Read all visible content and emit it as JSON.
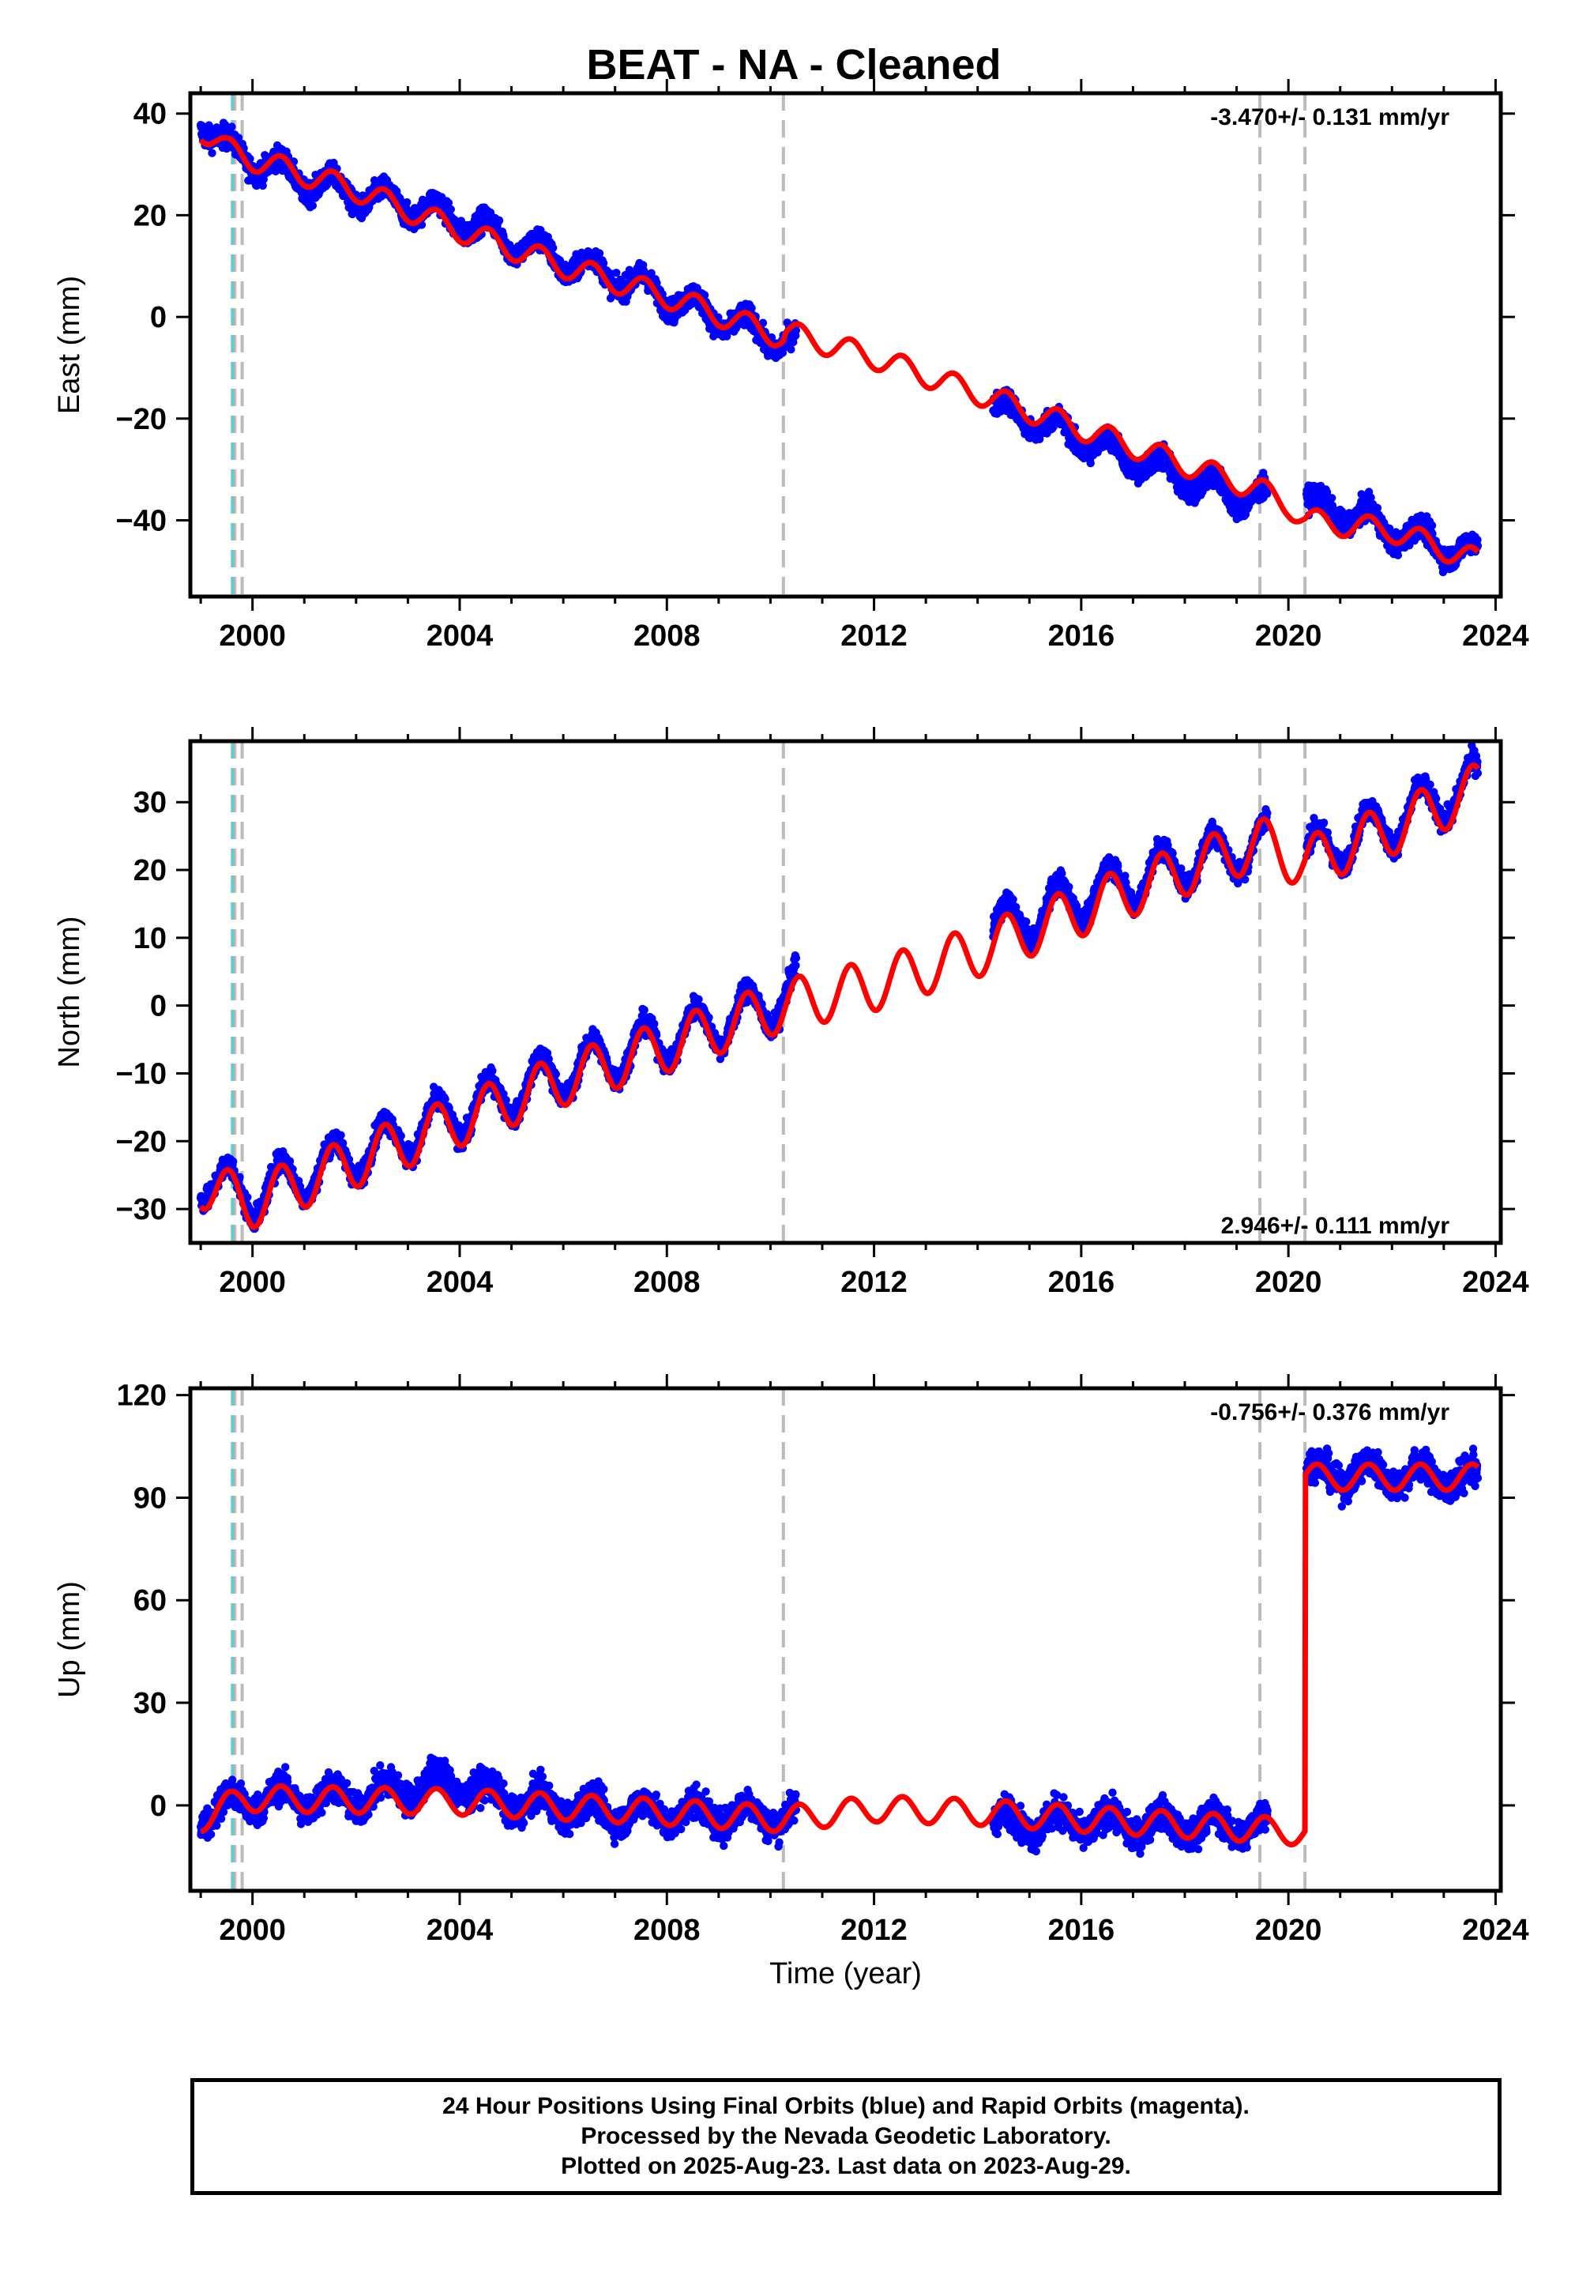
{
  "chart_data": {
    "type": "scatter",
    "title": "BEAT  - NA - Cleaned",
    "xlabel": "Time (year)",
    "xlim": [
      1998.8,
      2024.1
    ],
    "x_ticks": [
      2000,
      2004,
      2008,
      2012,
      2016,
      2020,
      2024
    ],
    "x_tick_labels": [
      "2000",
      "2004",
      "2008",
      "2012",
      "2016",
      "2020",
      "2024"
    ],
    "vertical_lines": {
      "cyan": [
        1999.62
      ],
      "pink": [
        1999.66
      ],
      "gray": [
        1999.8,
        2010.25,
        2019.45,
        2020.32
      ]
    },
    "colors": {
      "data": "#0000ff",
      "model": "#ff0000",
      "cyan_line": "#66cccc",
      "gray_line": "#bbbbbb",
      "pink_line": "#ffaaaa"
    },
    "panels": [
      {
        "name": "east",
        "ylabel": "East (mm)",
        "ylim": [
          -55,
          44
        ],
        "y_ticks": [
          40,
          20,
          0,
          -20,
          -40
        ],
        "y_tick_labels": [
          "40",
          "20",
          "0",
          "−20",
          "−40"
        ],
        "rate_text": "-3.470+/- 0.131 mm/yr",
        "rate_position": "top-right",
        "series": [
          {
            "name": "Final Orbits",
            "color": "#0000ff",
            "segments": [
              [
                1999.0,
                2010.5
              ],
              [
                2014.3,
                2019.6
              ],
              [
                2020.35,
                2023.66
              ]
            ],
            "anchors_x": [
              1999.0,
              1999.5,
              2000.0,
              2001.0,
              2002.0,
              2003.0,
              2004.0,
              2005.0,
              2006.0,
              2007.0,
              2008.0,
              2009.0,
              2010.0,
              2010.5,
              2014.3,
              2015.0,
              2016.0,
              2017.0,
              2018.0,
              2019.0,
              2019.6,
              2020.35,
              2021.0,
              2022.0,
              2023.0,
              2023.66
            ],
            "anchors_y": [
              39,
              33,
              31,
              27,
              24,
              22,
              19,
              15,
              11,
              8,
              4,
              0,
              -4,
              -5,
              -18,
              -20,
              -24,
              -28,
              -32,
              -35,
              -36,
              -37,
              -38,
              -42,
              -45,
              -47
            ],
            "amplitude": 2.5,
            "scatter": 2.2
          }
        ],
        "model": {
          "name": "Model fit",
          "color": "#ff0000",
          "knots_x": [
            1999.0,
            1999.5,
            2000.0,
            2002.0,
            2004.0,
            2006.0,
            2008.0,
            2010.25,
            2010.3,
            2012.0,
            2014.0,
            2016.0,
            2018.0,
            2019.45,
            2020.0,
            2020.32,
            2022.0,
            2023.66
          ],
          "knots_y": [
            37,
            33,
            31,
            25,
            17,
            10,
            4,
            -4,
            -3,
            -8,
            -15,
            -22,
            -29,
            -34,
            -37,
            -40,
            -42,
            -48
          ],
          "amplitude": 2.3
        }
      },
      {
        "name": "north",
        "ylabel": "North (mm)",
        "ylim": [
          -35,
          39
        ],
        "y_ticks": [
          30,
          20,
          10,
          0,
          -10,
          -20,
          -30
        ],
        "y_tick_labels": [
          "30",
          "20",
          "10",
          "0",
          "−10",
          "−20",
          "−30"
        ],
        "rate_text": "2.946+/- 0.111 mm/yr",
        "rate_position": "bottom-right",
        "series": [
          {
            "name": "Final Orbits",
            "color": "#0000ff",
            "segments": [
              [
                1999.0,
                2010.5
              ],
              [
                2014.3,
                2019.6
              ],
              [
                2020.35,
                2023.66
              ]
            ],
            "anchors_x": [
              1999.0,
              1999.8,
              2000.0,
              2002.0,
              2004.0,
              2006.0,
              2008.0,
              2010.0,
              2010.5,
              2014.3,
              2016.0,
              2018.0,
              2019.6,
              2020.35,
              2022.0,
              2023.66
            ],
            "anchors_y": [
              -25,
              -28,
              -28,
              -22,
              -16,
              -10,
              -5,
              0,
              3,
              11,
              16,
              21,
              24,
              22,
              27,
              33
            ],
            "amplitude": 3.5,
            "scatter": 1.6
          }
        ],
        "model": {
          "name": "Model fit",
          "color": "#ff0000",
          "knots_x": [
            1999.0,
            1999.8,
            2000.0,
            2002.0,
            2004.0,
            2006.0,
            2008.0,
            2010.25,
            2012.0,
            2014.0,
            2016.0,
            2018.0,
            2019.45,
            2020.32,
            2022.0,
            2023.66
          ],
          "knots_y": [
            -26,
            -29,
            -29,
            -23,
            -17,
            -11,
            -6,
            0,
            3,
            8,
            14,
            20,
            24,
            21,
            26,
            32
          ],
          "amplitude": 3.8
        }
      },
      {
        "name": "up",
        "ylabel": "Up (mm)",
        "ylim": [
          -25,
          122
        ],
        "y_ticks": [
          120,
          90,
          60,
          30,
          0
        ],
        "y_tick_labels": [
          "120",
          "90",
          "60",
          "30",
          "0"
        ],
        "rate_text": "-0.756+/- 0.376 mm/yr",
        "rate_position": "top-right",
        "series": [
          {
            "name": "Final Orbits",
            "color": "#0000ff",
            "segments": [
              [
                1999.0,
                2010.5
              ],
              [
                2014.3,
                2019.6
              ],
              [
                2020.35,
                2023.66
              ]
            ],
            "anchors_x": [
              1999.0,
              2000.0,
              2002.0,
              2003.0,
              2003.8,
              2005.0,
              2007.0,
              2010.0,
              2010.5,
              2014.3,
              2016.0,
              2018.0,
              2019.6,
              2020.35,
              2022.0,
              2023.66
            ],
            "anchors_y": [
              -3,
              2,
              2,
              5,
              7,
              1,
              -2,
              -3,
              -3,
              -5,
              -5,
              -6,
              -6,
              97,
              97,
              95
            ],
            "amplitude": 3.5,
            "scatter": 4.5
          }
        ],
        "model": {
          "name": "Model fit",
          "color": "#ff0000",
          "knots_x": [
            1999.0,
            1999.8,
            2000.0,
            2004.0,
            2008.0,
            2010.25,
            2012.0,
            2014.0,
            2016.0,
            2019.45,
            2020.32,
            2020.33,
            2022.0,
            2023.66
          ],
          "knots_y": [
            -4,
            2,
            2,
            1,
            -2,
            -4,
            -1,
            -2,
            -4,
            -7,
            -8,
            96,
            96,
            96
          ],
          "amplitude": 3.8
        }
      }
    ]
  },
  "footer": {
    "line1": "24 Hour Positions Using Final Orbits (blue) and Rapid Orbits (magenta).",
    "line2": "Processed by the Nevada Geodetic Laboratory.",
    "line3": "Plotted on 2025-Aug-23. Last data on 2023-Aug-29."
  }
}
